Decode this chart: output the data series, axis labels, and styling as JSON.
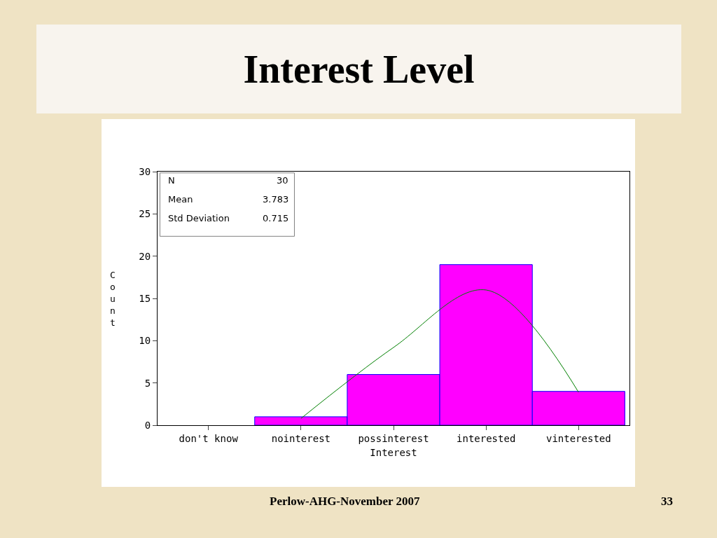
{
  "chart_data": {
    "type": "bar",
    "title": "Interest Level",
    "xlabel": "Interest",
    "ylabel": "Count",
    "categories": [
      "don't know",
      "nointerest",
      "possinterest",
      "interested",
      "vinterested"
    ],
    "series": [
      {
        "color": "#ff00ff",
        "values": [
          0,
          1,
          6,
          19,
          4
        ]
      },
      {
        "type": "line",
        "color": "#008000",
        "values": [
          null,
          0.8,
          9.2,
          16.0,
          3.9
        ]
      }
    ],
    "ylim": [
      0,
      30
    ],
    "yticks": [
      0,
      5,
      10,
      15,
      20,
      25,
      30
    ],
    "grid": false,
    "annotations": [
      "N",
      "30",
      "Mean",
      "3.783",
      "Std Deviation",
      "0.715",
      "Perlow-AHG-November 2007",
      "33"
    ]
  }
}
